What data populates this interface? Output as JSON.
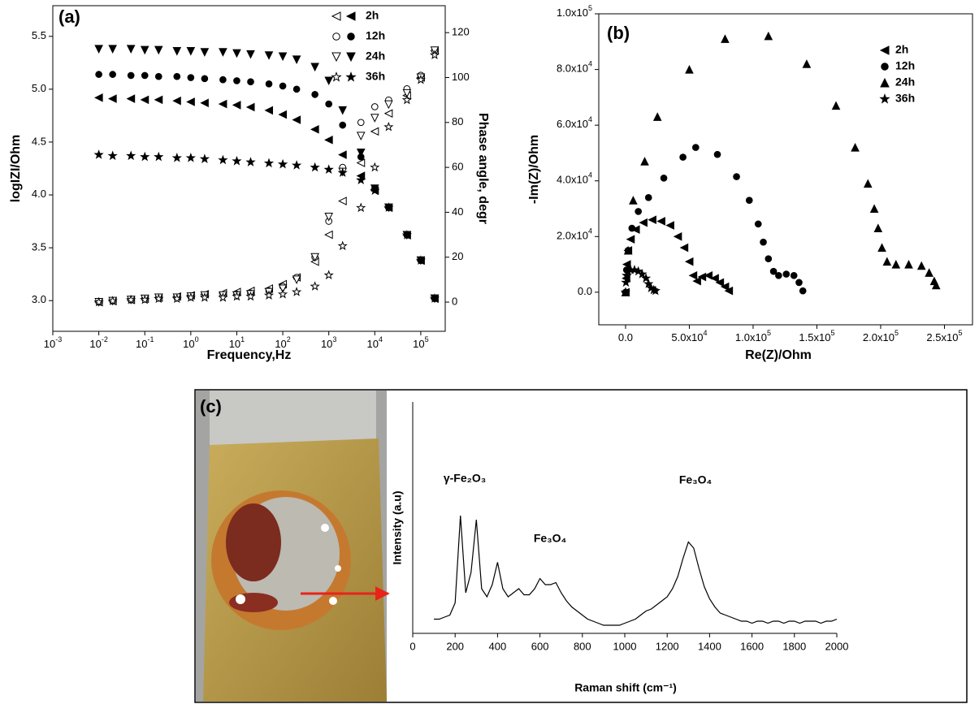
{
  "chart_data": [
    {
      "type": "scatter",
      "panel_label": "(a)",
      "xlabel": "Frequency,Hz",
      "ylabel": "logIZI/Ohm",
      "y2label": "Phase angle, degr",
      "xlog": true,
      "xlim": [
        0.001,
        340000
      ],
      "xticks": [
        {
          "value": 0.001,
          "label": "10",
          "exponent": "-3"
        },
        {
          "value": 0.01,
          "label": "10",
          "exponent": "-2"
        },
        {
          "value": 0.1,
          "label": "10",
          "exponent": "-1"
        },
        {
          "value": 1,
          "label": "10",
          "exponent": "0"
        },
        {
          "value": 10,
          "label": "10",
          "exponent": "1"
        },
        {
          "value": 100,
          "label": "10",
          "exponent": "2"
        },
        {
          "value": 1000,
          "label": "10",
          "exponent": "3"
        },
        {
          "value": 10000,
          "label": "10",
          "exponent": "4"
        },
        {
          "value": 100000,
          "label": "10",
          "exponent": "5"
        }
      ],
      "ylim": [
        2.71,
        5.79
      ],
      "yticks": [
        {
          "value": 3,
          "label": "3.0"
        },
        3.5,
        {
          "value": 4,
          "label": "4.0"
        },
        4.5,
        {
          "value": 5,
          "label": "5.0"
        },
        5.5
      ],
      "y2lim": [
        -13,
        132
      ],
      "y2ticks": [
        0,
        20,
        40,
        60,
        80,
        100,
        120
      ],
      "x": [
        0.01,
        0.02,
        0.05,
        0.1,
        0.2,
        0.5,
        1,
        2,
        5,
        10,
        20,
        50,
        100,
        200,
        500,
        1000,
        2000,
        5000,
        10000,
        20000,
        50000,
        100000,
        200000
      ],
      "series": [
        {
          "name": "2h",
          "marker": "triangle-left",
          "color": "#000000",
          "values": [
            4.92,
            4.91,
            4.91,
            4.9,
            4.9,
            4.89,
            4.88,
            4.87,
            4.86,
            4.85,
            4.83,
            4.8,
            4.76,
            4.71,
            4.62,
            4.52,
            4.38,
            4.18,
            4.04,
            3.88,
            3.62,
            3.38,
            3.02
          ],
          "y2values": [
            0,
            0.5,
            1,
            1.5,
            2,
            2.5,
            3,
            3.5,
            4,
            4.5,
            5,
            6,
            8,
            11,
            18,
            30,
            45,
            62,
            76,
            84,
            92,
            100,
            112
          ]
        },
        {
          "name": "12h",
          "marker": "circle",
          "color": "#000000",
          "values": [
            5.14,
            5.14,
            5.13,
            5.13,
            5.12,
            5.12,
            5.11,
            5.1,
            5.09,
            5.08,
            5.07,
            5.05,
            5.03,
            5.0,
            4.95,
            4.86,
            4.66,
            4.36,
            4.06,
            3.88,
            3.62,
            3.38,
            3.02
          ],
          "y2values": [
            0,
            0.5,
            1,
            1.5,
            2,
            2,
            2.5,
            3,
            3,
            3.5,
            4,
            5,
            7,
            11,
            20,
            36,
            60,
            80,
            87,
            90,
            95,
            101,
            112
          ]
        },
        {
          "name": "24h",
          "marker": "triangle-down",
          "color": "#000000",
          "values": [
            5.38,
            5.38,
            5.38,
            5.37,
            5.37,
            5.36,
            5.36,
            5.35,
            5.35,
            5.34,
            5.33,
            5.32,
            5.31,
            5.28,
            5.21,
            5.08,
            4.8,
            4.4,
            4.06,
            3.88,
            3.62,
            3.38,
            3.02
          ],
          "y2values": [
            0,
            0.5,
            1,
            1.5,
            2,
            2,
            2.5,
            3,
            3,
            3,
            3.5,
            4.5,
            6,
            10,
            20,
            38,
            58,
            74,
            82,
            88,
            93,
            100,
            112
          ]
        },
        {
          "name": "36h",
          "marker": "star",
          "color": "#000000",
          "values": [
            4.38,
            4.37,
            4.37,
            4.36,
            4.36,
            4.35,
            4.35,
            4.34,
            4.33,
            4.32,
            4.31,
            4.3,
            4.29,
            4.28,
            4.26,
            4.24,
            4.21,
            4.14,
            4.04,
            3.88,
            3.62,
            3.38,
            3.02
          ],
          "y2values": [
            0,
            0.5,
            1,
            1,
            1.5,
            1.5,
            2,
            2,
            2,
            2.5,
            2.5,
            3,
            3.5,
            4.5,
            7,
            12,
            25,
            42,
            60,
            78,
            90,
            99,
            110
          ]
        }
      ]
    },
    {
      "type": "scatter",
      "panel_label": "(b)",
      "xlabel": "Re(Z)/Ohm",
      "ylabel": "-Im(Z)/Ohm",
      "xlim": [
        -21000,
        272000
      ],
      "xticks": [
        {
          "value": 0,
          "label": "0.0"
        },
        {
          "value": 50000,
          "label": "5.0x10",
          "exponent": "4"
        },
        {
          "value": 100000,
          "label": "1.0x10",
          "exponent": "5"
        },
        {
          "value": 150000,
          "label": "1.5x10",
          "exponent": "5"
        },
        {
          "value": 200000,
          "label": "2.0x10",
          "exponent": "5"
        },
        {
          "value": 250000,
          "label": "2.5x10",
          "exponent": "5"
        }
      ],
      "ylim": [
        -11700,
        100000
      ],
      "yticks": [
        {
          "value": 0,
          "label": "0.0"
        },
        {
          "value": 20000,
          "label": "2.0x10",
          "exponent": "4"
        },
        {
          "value": 40000,
          "label": "4.0x10",
          "exponent": "4"
        },
        {
          "value": 60000,
          "label": "6.0x10",
          "exponent": "4"
        },
        {
          "value": 80000,
          "label": "8.0x10",
          "exponent": "4"
        },
        {
          "value": 100000,
          "label": "1.0x10",
          "exponent": "5"
        }
      ],
      "series": [
        {
          "name": "2h",
          "marker": "triangle-left",
          "color": "#000000",
          "x": [
            0,
            500,
            1000,
            2000,
            4000,
            8000,
            14000,
            21000,
            28000,
            35000,
            41000,
            46000,
            50000,
            53000,
            56000,
            60000,
            65000,
            70000,
            74000,
            78000,
            81000
          ],
          "values": [
            0,
            5000,
            10000,
            15000,
            19000,
            22500,
            25000,
            26000,
            25500,
            24000,
            20000,
            16000,
            11000,
            6000,
            4000,
            5500,
            6000,
            5000,
            3500,
            2000,
            500
          ]
        },
        {
          "name": "12h",
          "marker": "circle",
          "color": "#000000",
          "x": [
            0,
            800,
            2000,
            5000,
            10000,
            18000,
            30000,
            45000,
            55000,
            72000,
            87000,
            97000,
            104000,
            108000,
            112000,
            116000,
            120000,
            126000,
            132000,
            136000,
            139000
          ],
          "values": [
            0,
            8000,
            15000,
            23000,
            29000,
            34000,
            41000,
            48500,
            52000,
            49500,
            41500,
            33000,
            24500,
            18000,
            12000,
            7500,
            6000,
            6500,
            6000,
            3500,
            500
          ]
        },
        {
          "name": "24h",
          "marker": "triangle-up",
          "color": "#000000",
          "x": [
            0,
            2000,
            6000,
            15000,
            25000,
            50000,
            78000,
            112000,
            142000,
            165000,
            180000,
            190000,
            195000,
            198000,
            201000,
            205000,
            212000,
            222000,
            232000,
            238000,
            242000,
            243500
          ],
          "values": [
            0,
            15000,
            33000,
            47000,
            63000,
            80000,
            91000,
            92000,
            82000,
            67000,
            52000,
            39000,
            30000,
            23000,
            16000,
            11000,
            10000,
            10000,
            9500,
            7000,
            4000,
            2500
          ]
        },
        {
          "name": "36h",
          "marker": "star",
          "color": "#000000",
          "x": [
            0,
            300,
            800,
            2000,
            4000,
            7000,
            10000,
            13000,
            16000,
            18000,
            20000,
            22000,
            23500
          ],
          "values": [
            0,
            3500,
            6000,
            7500,
            8000,
            8000,
            7500,
            6500,
            5000,
            3000,
            1500,
            800,
            500
          ]
        }
      ]
    },
    {
      "type": "line",
      "panel_label": "(c)",
      "xlabel": "Raman shift (cm⁻¹)",
      "ylabel": "Intensity (a.u)",
      "color": "#000000",
      "xlim": [
        0,
        2000
      ],
      "xticks": [
        0,
        200,
        400,
        600,
        800,
        1000,
        1200,
        1400,
        1600,
        1800,
        2000
      ],
      "ylim": [
        0,
        114
      ],
      "annotations": [
        "γ-Fe₂O₃",
        "Fe₃O₄",
        "Fe₃O₄"
      ],
      "x": [
        100,
        125,
        150,
        175,
        200,
        225,
        250,
        275,
        300,
        325,
        350,
        375,
        400,
        425,
        450,
        475,
        500,
        525,
        550,
        575,
        600,
        625,
        650,
        675,
        700,
        725,
        750,
        775,
        800,
        825,
        850,
        875,
        900,
        925,
        950,
        975,
        1000,
        1025,
        1050,
        1075,
        1100,
        1125,
        1150,
        1175,
        1200,
        1225,
        1250,
        1275,
        1300,
        1325,
        1350,
        1375,
        1400,
        1425,
        1450,
        1475,
        1500,
        1525,
        1550,
        1575,
        1600,
        1625,
        1650,
        1675,
        1700,
        1725,
        1750,
        1775,
        1800,
        1825,
        1850,
        1875,
        1900,
        1925,
        1950,
        1975,
        2000
      ],
      "values": [
        7,
        7,
        8,
        9,
        15,
        58,
        20,
        30,
        56,
        22,
        18,
        24,
        35,
        22,
        18,
        20,
        22,
        19,
        19,
        22,
        27,
        24,
        24,
        25,
        20,
        16,
        13,
        11,
        9,
        7,
        6,
        5,
        4,
        4,
        4,
        4,
        5,
        6,
        7,
        9,
        11,
        12,
        14,
        16,
        18,
        22,
        28,
        37,
        45,
        42,
        32,
        23,
        17,
        13,
        10,
        9,
        8,
        7,
        6,
        6,
        5,
        6,
        6,
        5,
        6,
        6,
        5,
        6,
        6,
        5,
        6,
        6,
        6,
        5,
        6,
        6,
        7
      ]
    }
  ]
}
